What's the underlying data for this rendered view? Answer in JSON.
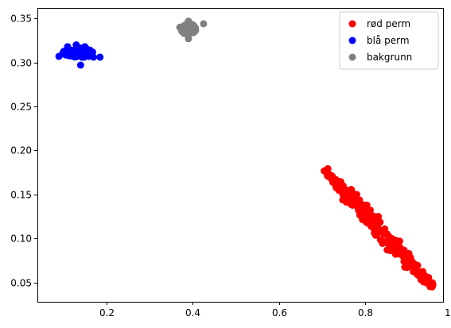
{
  "chart_data": {
    "type": "scatter",
    "title": "",
    "xlabel": "",
    "ylabel": "",
    "xlim": [
      0.04,
      0.98
    ],
    "ylim": [
      0.028,
      0.362
    ],
    "xticks": [
      0.2,
      0.4,
      0.6,
      0.8,
      1.0
    ],
    "xtick_labels": [
      "0.2",
      "0.4",
      "0.6",
      "0.8",
      "1.0"
    ],
    "yticks": [
      0.05,
      0.1,
      0.15,
      0.2,
      0.25,
      0.3,
      0.35
    ],
    "ytick_labels": [
      "0.05",
      "0.10",
      "0.15",
      "0.20",
      "0.25",
      "0.30",
      "0.35"
    ],
    "grid": false,
    "legend_position": "top-right",
    "series": [
      {
        "name": "rød perm",
        "color": "#ff0000",
        "cluster": {
          "shape": "diagonal-band",
          "from": [
            0.71,
            0.175
          ],
          "to": [
            0.955,
            0.045
          ],
          "spread": 0.006
        },
        "points": [
          [
            0.71,
            0.175
          ],
          [
            0.74,
            0.162
          ],
          [
            0.77,
            0.148
          ],
          [
            0.8,
            0.13
          ],
          [
            0.82,
            0.12
          ],
          [
            0.85,
            0.105
          ],
          [
            0.88,
            0.09
          ],
          [
            0.9,
            0.078
          ],
          [
            0.93,
            0.062
          ],
          [
            0.955,
            0.045
          ],
          [
            0.78,
            0.15
          ],
          [
            0.83,
            0.125
          ],
          [
            0.87,
            0.098
          ],
          [
            0.89,
            0.082
          ]
        ]
      },
      {
        "name": "blå perm",
        "color": "#0000ff",
        "cluster": {
          "shape": "blob",
          "center": [
            0.135,
            0.311
          ],
          "rx": 0.045,
          "ry": 0.007
        },
        "points": [
          [
            0.09,
            0.307
          ],
          [
            0.11,
            0.318
          ],
          [
            0.13,
            0.32
          ],
          [
            0.15,
            0.318
          ],
          [
            0.17,
            0.306
          ],
          [
            0.185,
            0.306
          ],
          [
            0.14,
            0.297
          ],
          [
            0.12,
            0.31
          ],
          [
            0.16,
            0.312
          ]
        ]
      },
      {
        "name": "bakgrunn",
        "color": "#808080",
        "cluster": {
          "shape": "blob",
          "center": [
            0.39,
            0.338
          ],
          "rx": 0.022,
          "ry": 0.007
        },
        "points": [
          [
            0.37,
            0.34
          ],
          [
            0.39,
            0.347
          ],
          [
            0.405,
            0.338
          ],
          [
            0.425,
            0.344
          ],
          [
            0.39,
            0.327
          ],
          [
            0.38,
            0.333
          ],
          [
            0.4,
            0.343
          ]
        ]
      }
    ]
  }
}
